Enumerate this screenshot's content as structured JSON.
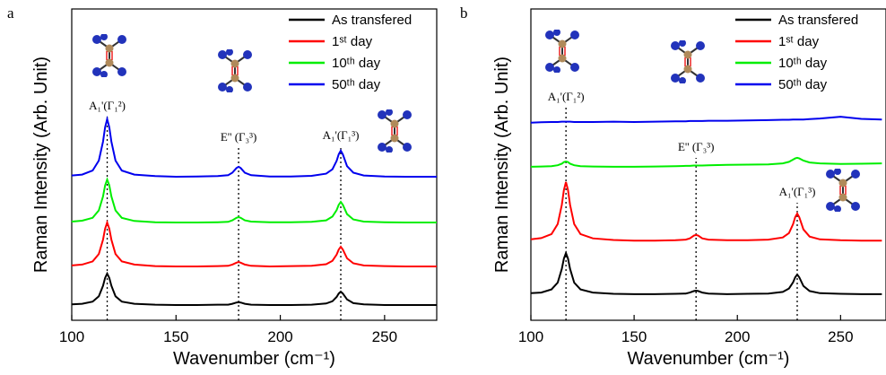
{
  "chart_data": [
    {
      "type": "line",
      "panel_label": "a",
      "x_label": "Wavenumber (cm⁻¹)",
      "y_label": "Raman Intensity (Arb. Unit)",
      "x": [
        100,
        105,
        110,
        113,
        115,
        116,
        117,
        118,
        119,
        121,
        124,
        130,
        140,
        150,
        160,
        170,
        175,
        177,
        179,
        180,
        181,
        183,
        186,
        195,
        205,
        215,
        222,
        225,
        227,
        228,
        229,
        230,
        232,
        235,
        240,
        250,
        260,
        270,
        275
      ],
      "xlim": [
        100,
        275
      ],
      "xticks": [
        100,
        150,
        200,
        250
      ],
      "ylim": [
        0,
        10
      ],
      "peaks": [
        117,
        180,
        229
      ],
      "peak_labels": [
        "A₁'(Γ₁²)",
        "E'' (Γ₃³)",
        "A₁'(Γ₁³)"
      ],
      "legend": "upper right",
      "series": [
        {
          "name": "As transfered",
          "color": "#000000",
          "values": [
            0.51,
            0.53,
            0.6,
            0.77,
            1.11,
            1.36,
            1.5,
            1.36,
            1.11,
            0.77,
            0.6,
            0.53,
            0.5,
            0.49,
            0.49,
            0.5,
            0.5,
            0.53,
            0.57,
            0.58,
            0.57,
            0.53,
            0.5,
            0.49,
            0.49,
            0.5,
            0.54,
            0.61,
            0.75,
            0.86,
            0.92,
            0.86,
            0.67,
            0.55,
            0.51,
            0.49,
            0.49,
            0.49,
            0.49
          ]
        },
        {
          "name": "1ˢᵗ day",
          "color": "#ff0000",
          "values": [
            1.76,
            1.79,
            1.89,
            2.13,
            2.59,
            2.94,
            3.14,
            2.94,
            2.59,
            2.13,
            1.89,
            1.79,
            1.74,
            1.73,
            1.73,
            1.74,
            1.75,
            1.79,
            1.85,
            1.87,
            1.85,
            1.79,
            1.75,
            1.73,
            1.74,
            1.75,
            1.8,
            1.91,
            2.11,
            2.27,
            2.36,
            2.27,
            1.99,
            1.83,
            1.76,
            1.74,
            1.73,
            1.73,
            1.73
          ]
        },
        {
          "name": "10ᵗʰ day",
          "color": "#00ee00",
          "values": [
            3.17,
            3.2,
            3.29,
            3.53,
            3.98,
            4.33,
            4.52,
            4.33,
            3.98,
            3.53,
            3.29,
            3.19,
            3.15,
            3.14,
            3.14,
            3.15,
            3.16,
            3.21,
            3.29,
            3.31,
            3.29,
            3.21,
            3.17,
            3.15,
            3.15,
            3.16,
            3.21,
            3.33,
            3.54,
            3.71,
            3.8,
            3.71,
            3.41,
            3.24,
            3.17,
            3.15,
            3.14,
            3.14,
            3.14
          ]
        },
        {
          "name": "50ᵗʰ day",
          "color": "#0000ee",
          "values": [
            4.65,
            4.68,
            4.81,
            5.13,
            5.74,
            6.2,
            6.46,
            6.2,
            5.74,
            5.13,
            4.81,
            4.68,
            4.63,
            4.61,
            4.62,
            4.63,
            4.66,
            4.74,
            4.89,
            4.93,
            4.89,
            4.74,
            4.66,
            4.62,
            4.62,
            4.64,
            4.71,
            4.85,
            5.12,
            5.33,
            5.45,
            5.33,
            4.95,
            4.74,
            4.65,
            4.62,
            4.61,
            4.61,
            4.61
          ]
        }
      ]
    },
    {
      "type": "line",
      "panel_label": "b",
      "x_label": "Wavenumber (cm⁻¹)",
      "y_label": "Raman Intensity (Arb. Unit)",
      "x": [
        100,
        105,
        110,
        113,
        115,
        116,
        117,
        118,
        119,
        121,
        124,
        130,
        140,
        150,
        160,
        170,
        175,
        177,
        179,
        180,
        181,
        183,
        186,
        195,
        205,
        215,
        222,
        225,
        227,
        228,
        229,
        230,
        232,
        235,
        240,
        250,
        260,
        270
      ],
      "xlim": [
        100,
        272
      ],
      "xticks": [
        100,
        150,
        200,
        250
      ],
      "ylim": [
        0,
        10
      ],
      "peaks": [
        117,
        180,
        229
      ],
      "peak_labels": [
        "A₁'(Γ₁²)",
        "E'' (Γ₃³)",
        "A₁'(Γ₁³)"
      ],
      "legend": "upper right",
      "series": [
        {
          "name": "As transfered",
          "color": "#000000",
          "values": [
            0.87,
            0.89,
            0.99,
            1.21,
            1.65,
            1.98,
            2.16,
            1.98,
            1.65,
            1.21,
            0.99,
            0.89,
            0.85,
            0.84,
            0.84,
            0.85,
            0.86,
            0.89,
            0.94,
            0.95,
            0.94,
            0.89,
            0.86,
            0.84,
            0.85,
            0.86,
            0.91,
            1.02,
            1.22,
            1.38,
            1.47,
            1.38,
            1.1,
            0.94,
            0.87,
            0.85,
            0.84,
            0.84
          ]
        },
        {
          "name": "1ˢᵗ day",
          "color": "#ff0000",
          "values": [
            2.6,
            2.64,
            2.77,
            3.09,
            3.71,
            4.18,
            4.44,
            4.18,
            3.71,
            3.09,
            2.77,
            2.63,
            2.58,
            2.56,
            2.56,
            2.57,
            2.59,
            2.63,
            2.72,
            2.74,
            2.72,
            2.63,
            2.59,
            2.57,
            2.57,
            2.59,
            2.66,
            2.8,
            3.09,
            3.31,
            3.43,
            3.31,
            2.92,
            2.69,
            2.6,
            2.57,
            2.56,
            2.56
          ]
        },
        {
          "name": "10ᵗʰ day",
          "color": "#00ee00",
          "values": [
            4.93,
            4.94,
            4.95,
            4.98,
            5.03,
            5.08,
            5.1,
            5.08,
            5.03,
            4.98,
            4.95,
            4.94,
            4.93,
            4.93,
            4.94,
            4.95,
            4.96,
            4.96,
            4.97,
            4.97,
            4.97,
            4.97,
            4.98,
            4.99,
            5.0,
            5.01,
            5.04,
            5.09,
            5.16,
            5.2,
            5.22,
            5.2,
            5.13,
            5.07,
            5.04,
            5.02,
            5.03,
            5.04
          ]
        },
        {
          "name": "50ᵗʰ day",
          "color": "#0000ee",
          "values": [
            6.35,
            6.36,
            6.37,
            6.37,
            6.38,
            6.38,
            6.38,
            6.38,
            6.38,
            6.37,
            6.37,
            6.37,
            6.38,
            6.37,
            6.38,
            6.39,
            6.39,
            6.4,
            6.4,
            6.4,
            6.4,
            6.4,
            6.41,
            6.41,
            6.42,
            6.43,
            6.44,
            6.44,
            6.45,
            6.45,
            6.45,
            6.45,
            6.45,
            6.46,
            6.48,
            6.54,
            6.47,
            6.45
          ]
        }
      ]
    }
  ]
}
